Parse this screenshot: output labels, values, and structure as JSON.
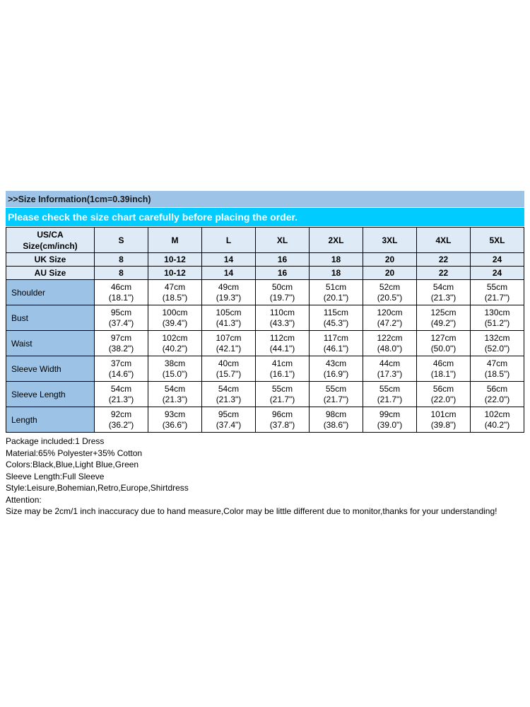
{
  "title_bar": {
    "text": ">>Size Information(1cm=0.39inch)"
  },
  "notice_bar": {
    "text": "Please check the size chart carefully before placing the order."
  },
  "size_table": {
    "corner": {
      "line1": "US/CA",
      "line2": "Size(cm/inch)"
    },
    "size_headers": [
      "S",
      "M",
      "L",
      "XL",
      "2XL",
      "3XL",
      "4XL",
      "5XL"
    ],
    "uk_row": {
      "label": "UK Size",
      "values": [
        "8",
        "10-12",
        "14",
        "16",
        "18",
        "20",
        "22",
        "24"
      ]
    },
    "au_row": {
      "label": "AU Size",
      "values": [
        "8",
        "10-12",
        "14",
        "16",
        "18",
        "20",
        "22",
        "24"
      ]
    },
    "rows": [
      {
        "label": "Shoulder",
        "cm": [
          "46cm",
          "47cm",
          "49cm",
          "50cm",
          "51cm",
          "52cm",
          "54cm",
          "55cm"
        ],
        "inch": [
          "(18.1\")",
          "(18.5\")",
          "(19.3\")",
          "(19.7\")",
          "(20.1\")",
          "(20.5\")",
          "(21.3\")",
          "(21.7\")"
        ]
      },
      {
        "label": "Bust",
        "cm": [
          "95cm",
          "100cm",
          "105cm",
          "110cm",
          "115cm",
          "120cm",
          "125cm",
          "130cm"
        ],
        "inch": [
          "(37.4\")",
          "(39.4\")",
          "(41.3\")",
          "(43.3\")",
          "(45.3\")",
          "(47.2\")",
          "(49.2\")",
          "(51.2\")"
        ]
      },
      {
        "label": "Waist",
        "cm": [
          "97cm",
          "102cm",
          "107cm",
          "112cm",
          "117cm",
          "122cm",
          "127cm",
          "132cm"
        ],
        "inch": [
          "(38.2\")",
          "(40.2\")",
          "(42.1\")",
          "(44.1\")",
          "(46.1\")",
          "(48.0\")",
          "(50.0\")",
          "(52.0\")"
        ]
      },
      {
        "label": "Sleeve Width",
        "cm": [
          "37cm",
          "38cm",
          "40cm",
          "41cm",
          "43cm",
          "44cm",
          "46cm",
          "47cm"
        ],
        "inch": [
          "(14.6\")",
          "(15.0\")",
          "(15.7\")",
          "(16.1\")",
          "(16.9\")",
          "(17.3\")",
          "(18.1\")",
          "(18.5\")"
        ]
      },
      {
        "label": "Sleeve Length",
        "cm": [
          "54cm",
          "54cm",
          "54cm",
          "55cm",
          "55cm",
          "55cm",
          "56cm",
          "56cm"
        ],
        "inch": [
          "(21.3\")",
          "(21.3\")",
          "(21.3\")",
          "(21.7\")",
          "(21.7\")",
          "(21.7\")",
          "(22.0\")",
          "(22.0\")"
        ]
      },
      {
        "label": "Length",
        "cm": [
          "92cm",
          "93cm",
          "95cm",
          "96cm",
          "98cm",
          "99cm",
          "101cm",
          "102cm"
        ],
        "inch": [
          "(36.2\")",
          "(36.6\")",
          "(37.4\")",
          "(37.8\")",
          "(38.6\")",
          "(39.0\")",
          "(39.8\")",
          "(40.2\")"
        ]
      }
    ]
  },
  "details": [
    "Package included:1 Dress",
    "Material:65% Polyester+35% Cotton",
    "Colors:Black,Blue,Light Blue,Green",
    "Sleeve Length:Full Sleeve",
    "Style:Leisure,Bohemian,Retro,Europe,Shirtdress",
    "Attention:",
    "Size may be 2cm/1 inch inaccuracy due to hand measure,Color may be little different due to monitor,thanks for your understanding!"
  ],
  "colors": {
    "title_bar_bg": "#9DC3E6",
    "notice_bar_bg": "#00CCFF",
    "notice_text": "#FFFFFF",
    "header_row_bg": "#DEEAF6",
    "label_column_bg": "#9CC2E5",
    "table_border": "#000000"
  }
}
